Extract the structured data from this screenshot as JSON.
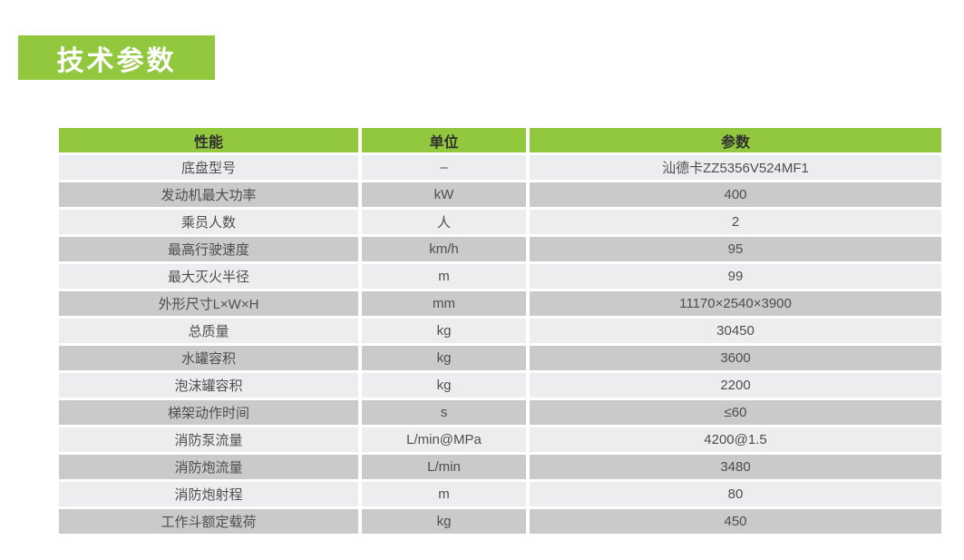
{
  "page": {
    "title": "技术参数"
  },
  "colors": {
    "accent_green": "#92c83e",
    "row_light": "#ecedee",
    "row_dark": "#c9cacb",
    "header_text": "#2f2f2f",
    "cell_text": "#4c4e50",
    "title_text": "#ffffff"
  },
  "table": {
    "headers": [
      "性能",
      "单位",
      "参数"
    ],
    "rows": [
      {
        "name": "底盘型号",
        "unit": "–",
        "value": "汕德卡ZZ5356V524MF1"
      },
      {
        "name": "发动机最大功率",
        "unit": "kW",
        "value": "400"
      },
      {
        "name": "乘员人数",
        "unit": "人",
        "value": "2"
      },
      {
        "name": "最高行驶速度",
        "unit": "km/h",
        "value": "95"
      },
      {
        "name": "最大灭火半径",
        "unit": "m",
        "value": "99"
      },
      {
        "name": "外形尺寸L×W×H",
        "unit": "mm",
        "value": "11170×2540×3900"
      },
      {
        "name": "总质量",
        "unit": "kg",
        "value": "30450"
      },
      {
        "name": "水罐容积",
        "unit": "kg",
        "value": "3600"
      },
      {
        "name": "泡沫罐容积",
        "unit": "kg",
        "value": "2200"
      },
      {
        "name": "梯架动作时间",
        "unit": "s",
        "value": "≤60"
      },
      {
        "name": "消防泵流量",
        "unit": "L/min@MPa",
        "value": "4200@1.5"
      },
      {
        "name": "消防炮流量",
        "unit": "L/min",
        "value": "3480"
      },
      {
        "name": "消防炮射程",
        "unit": "m",
        "value": "80"
      },
      {
        "name": "工作斗额定载荷",
        "unit": "kg",
        "value": "450"
      }
    ]
  }
}
